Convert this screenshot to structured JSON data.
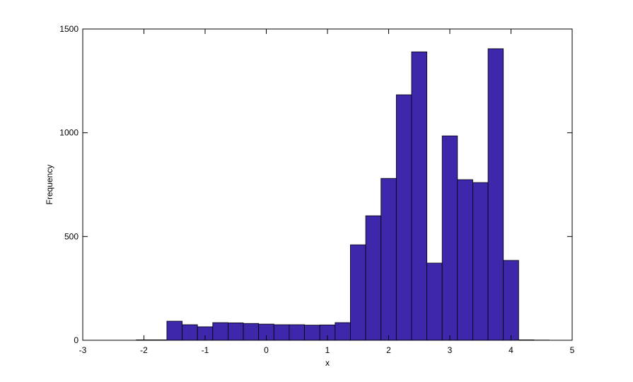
{
  "chart_data": {
    "type": "histogram",
    "x_label": "x",
    "y_label": "Frequency",
    "bins": [
      -2.125,
      -1.875,
      -1.625,
      -1.375,
      -1.125,
      -0.875,
      -0.625,
      -0.375,
      -0.125,
      0.125,
      0.375,
      0.625,
      0.875,
      1.125,
      1.375,
      1.625,
      1.875,
      2.125,
      2.375,
      2.625,
      2.875,
      3.125,
      3.375,
      3.625,
      3.875,
      4.125,
      4.375,
      4.625
    ],
    "values": [
      2,
      2,
      92,
      75,
      65,
      85,
      84,
      81,
      78,
      75,
      75,
      73,
      74,
      85,
      460,
      600,
      780,
      1183,
      1390,
      372,
      985,
      774,
      760,
      1405,
      385,
      2,
      1
    ],
    "color": "#3f27ab",
    "xlim": [
      -3,
      5
    ],
    "xticks": [
      -3,
      -2,
      -1,
      0,
      1,
      2,
      3,
      4,
      5
    ],
    "ylim": [
      0,
      1500
    ],
    "yticks": [
      0,
      500,
      1000,
      1500
    ]
  }
}
